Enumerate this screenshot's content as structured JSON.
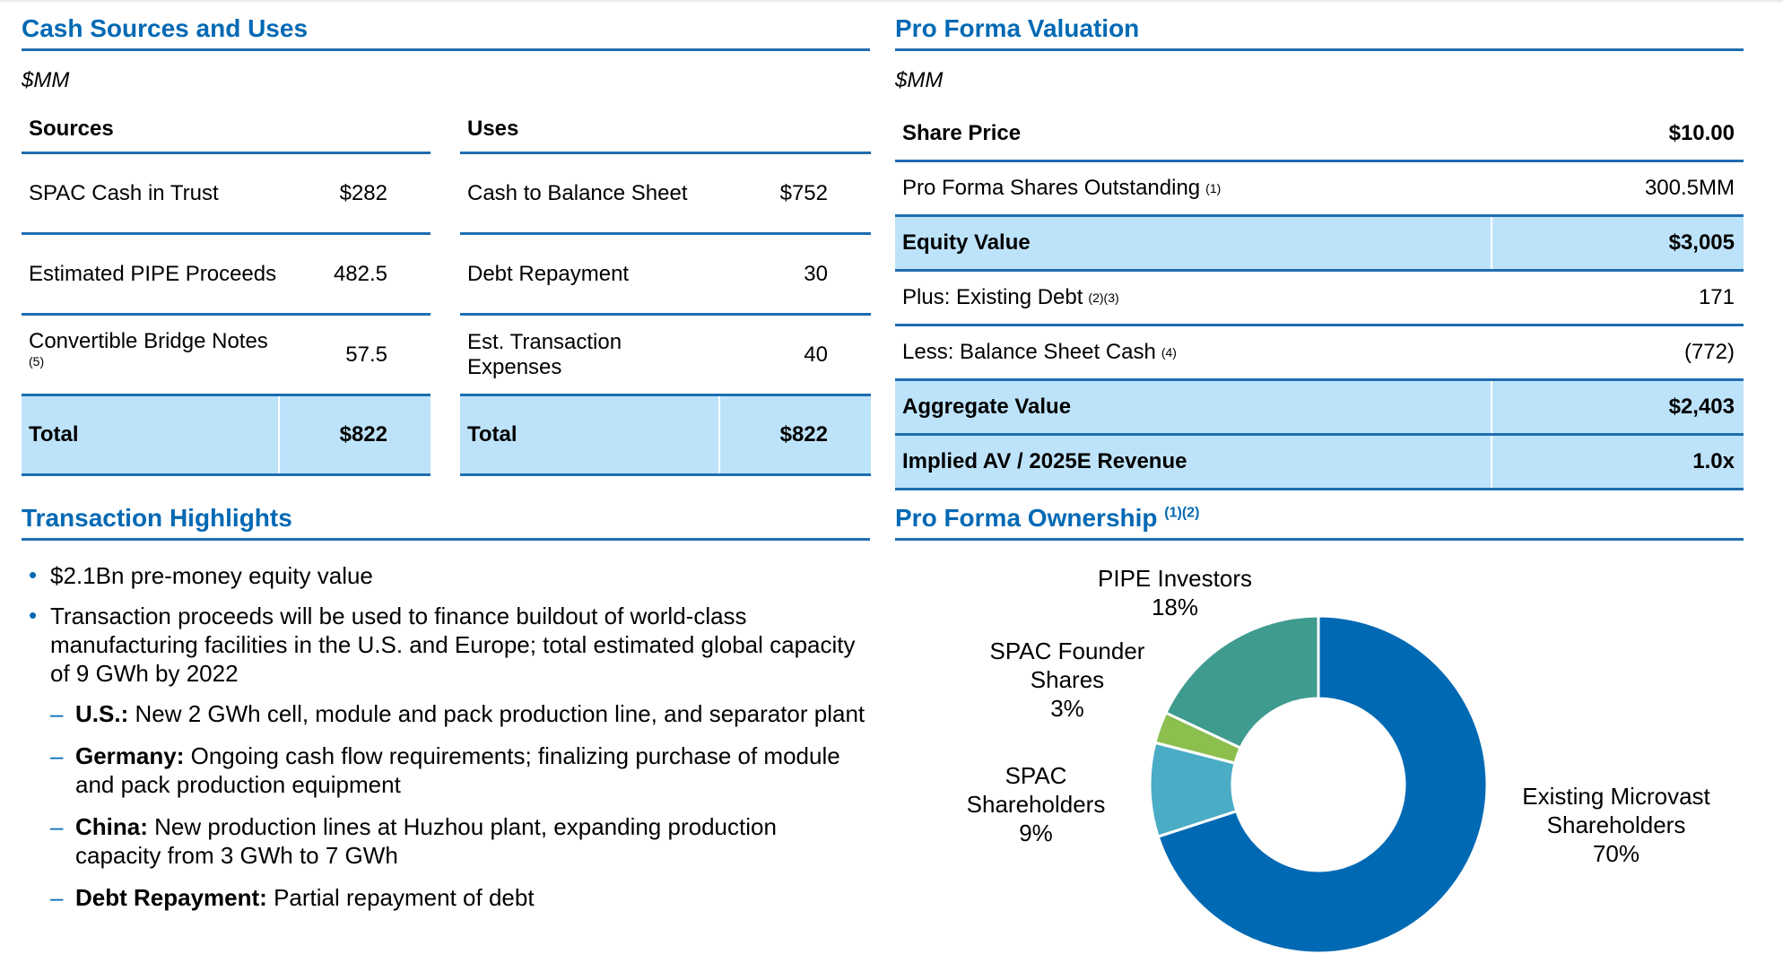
{
  "cash": {
    "title": "Cash Sources and Uses",
    "unit": "$MM",
    "sources": {
      "header": "Sources",
      "rows": [
        {
          "label": "SPAC Cash in Trust",
          "note": "",
          "value": "$282"
        },
        {
          "label": "Estimated PIPE Proceeds",
          "note": "",
          "value": "482.5"
        },
        {
          "label": "Convertible Bridge Notes",
          "note": "(5)",
          "value": "57.5"
        }
      ],
      "total_label": "Total",
      "total_value": "$822"
    },
    "uses": {
      "header": "Uses",
      "rows": [
        {
          "label": "Cash to Balance Sheet",
          "value": "$752"
        },
        {
          "label": "Debt Repayment",
          "value": "30"
        },
        {
          "label": "Est. Transaction Expenses",
          "value": "40"
        }
      ],
      "total_label": "Total",
      "total_value": "$822"
    }
  },
  "valuation": {
    "title": "Pro Forma Valuation",
    "unit": "$MM",
    "rows": [
      {
        "label": "Share Price",
        "note": "",
        "value": "$10.00"
      },
      {
        "label": "Pro Forma Shares Outstanding",
        "note": "(1)",
        "value": "300.5MM"
      },
      {
        "label": "Equity Value",
        "note": "",
        "value": "$3,005"
      },
      {
        "label": "Plus: Existing Debt",
        "note": "(2)(3)",
        "value": "171"
      },
      {
        "label": "Less: Balance Sheet Cash",
        "note": "(4)",
        "value": "(772)"
      },
      {
        "label": "Aggregate Value",
        "note": "",
        "value": "$2,403"
      },
      {
        "label": "Implied AV / 2025E Revenue",
        "note": "",
        "value": "1.0x"
      }
    ]
  },
  "highlights": {
    "title": "Transaction Highlights",
    "bullets": [
      "$2.1Bn pre-money equity value",
      "Transaction proceeds will be used to finance buildout of world-class manufacturing facilities in the U.S. and Europe; total estimated global capacity of 9 GWh by 2022"
    ],
    "subs": [
      {
        "key": "U.S.:",
        "text": "New 2 GWh cell, module and pack production line, and separator plant"
      },
      {
        "key": "Germany:",
        "text": "Ongoing cash flow requirements; finalizing purchase of module and pack production equipment"
      },
      {
        "key": "China:",
        "text": "New production lines at Huzhou plant, expanding production capacity from 3 GWh to 7 GWh"
      },
      {
        "key": "Debt Repayment:",
        "text": "Partial repayment of debt"
      }
    ]
  },
  "ownership": {
    "title": "Pro Forma Ownership",
    "note": "(1)(2)",
    "colors": {
      "existing": "#0069b4",
      "spac_shareholders": "#4bacc6",
      "spac_founder": "#8cbf4e",
      "pipe": "#3f9b8e"
    }
  },
  "chart_data": {
    "type": "pie",
    "labels": [
      "Existing Microvast Shareholders",
      "SPAC Shareholders",
      "SPAC Founder Shares",
      "PIPE Investors"
    ],
    "values": [
      70,
      9,
      3,
      18
    ],
    "value_labels": [
      "70%",
      "9%",
      "3%",
      "18%"
    ],
    "display_lines": [
      [
        "Existing Microvast",
        "Shareholders",
        "70%"
      ],
      [
        "SPAC",
        "Shareholders",
        "9%"
      ],
      [
        "SPAC Founder",
        "Shares",
        "3%"
      ],
      [
        "PIPE Investors",
        "18%"
      ]
    ],
    "colors": [
      "#0069b4",
      "#4bacc6",
      "#8cbf4e",
      "#3f9b8e"
    ],
    "donut": true,
    "start": "12 o'clock",
    "direction": "clockwise"
  }
}
